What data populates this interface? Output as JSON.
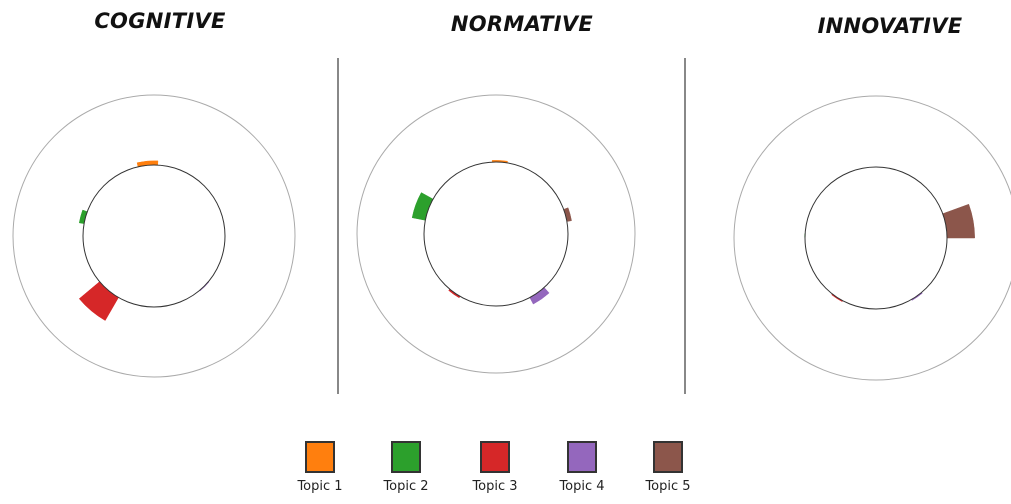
{
  "chart_data": [
    {
      "type": "radial-bar",
      "title": "COGNITIVE",
      "series": [
        {
          "name": "Topic 1",
          "angle": 355,
          "width": 16,
          "value": 0.06
        },
        {
          "name": "Topic 2",
          "angle": 285,
          "width": 10,
          "value": 0.07
        },
        {
          "name": "Topic 3",
          "angle": 220,
          "width": 20,
          "value": 0.38
        },
        {
          "name": "Topic 4",
          "angle": 135,
          "width": 10,
          "value": 0.01
        }
      ]
    },
    {
      "type": "radial-bar",
      "title": "NORMATIVE",
      "series": [
        {
          "name": "Topic 1",
          "angle": 3,
          "width": 12,
          "value": 0.025
        },
        {
          "name": "Topic 2",
          "angle": 290,
          "width": 18,
          "value": 0.2
        },
        {
          "name": "Topic 5",
          "angle": 75,
          "width": 10,
          "value": 0.07
        },
        {
          "name": "Topic 3",
          "angle": 215,
          "width": 10,
          "value": 0.025
        },
        {
          "name": "Topic 4",
          "angle": 145,
          "width": 14,
          "value": 0.11
        }
      ]
    },
    {
      "type": "radial-bar",
      "title": "INNOVATIVE",
      "series": [
        {
          "name": "Topic 2",
          "angle": 272,
          "width": 3,
          "value": 0.005
        },
        {
          "name": "Topic 5",
          "angle": 80,
          "width": 20,
          "value": 0.39
        },
        {
          "name": "Topic 3",
          "angle": 213,
          "width": 10,
          "value": 0.015
        },
        {
          "name": "Topic 4",
          "angle": 145,
          "width": 10,
          "value": 0.015
        }
      ]
    }
  ],
  "legend": [
    {
      "label": "Topic 1",
      "color": "#ff7f0e"
    },
    {
      "label": "Topic 2",
      "color": "#2ca02c"
    },
    {
      "label": "Topic 3",
      "color": "#d62728"
    },
    {
      "label": "Topic 4",
      "color": "#9467bd"
    },
    {
      "label": "Topic 5",
      "color": "#8c564b"
    }
  ]
}
